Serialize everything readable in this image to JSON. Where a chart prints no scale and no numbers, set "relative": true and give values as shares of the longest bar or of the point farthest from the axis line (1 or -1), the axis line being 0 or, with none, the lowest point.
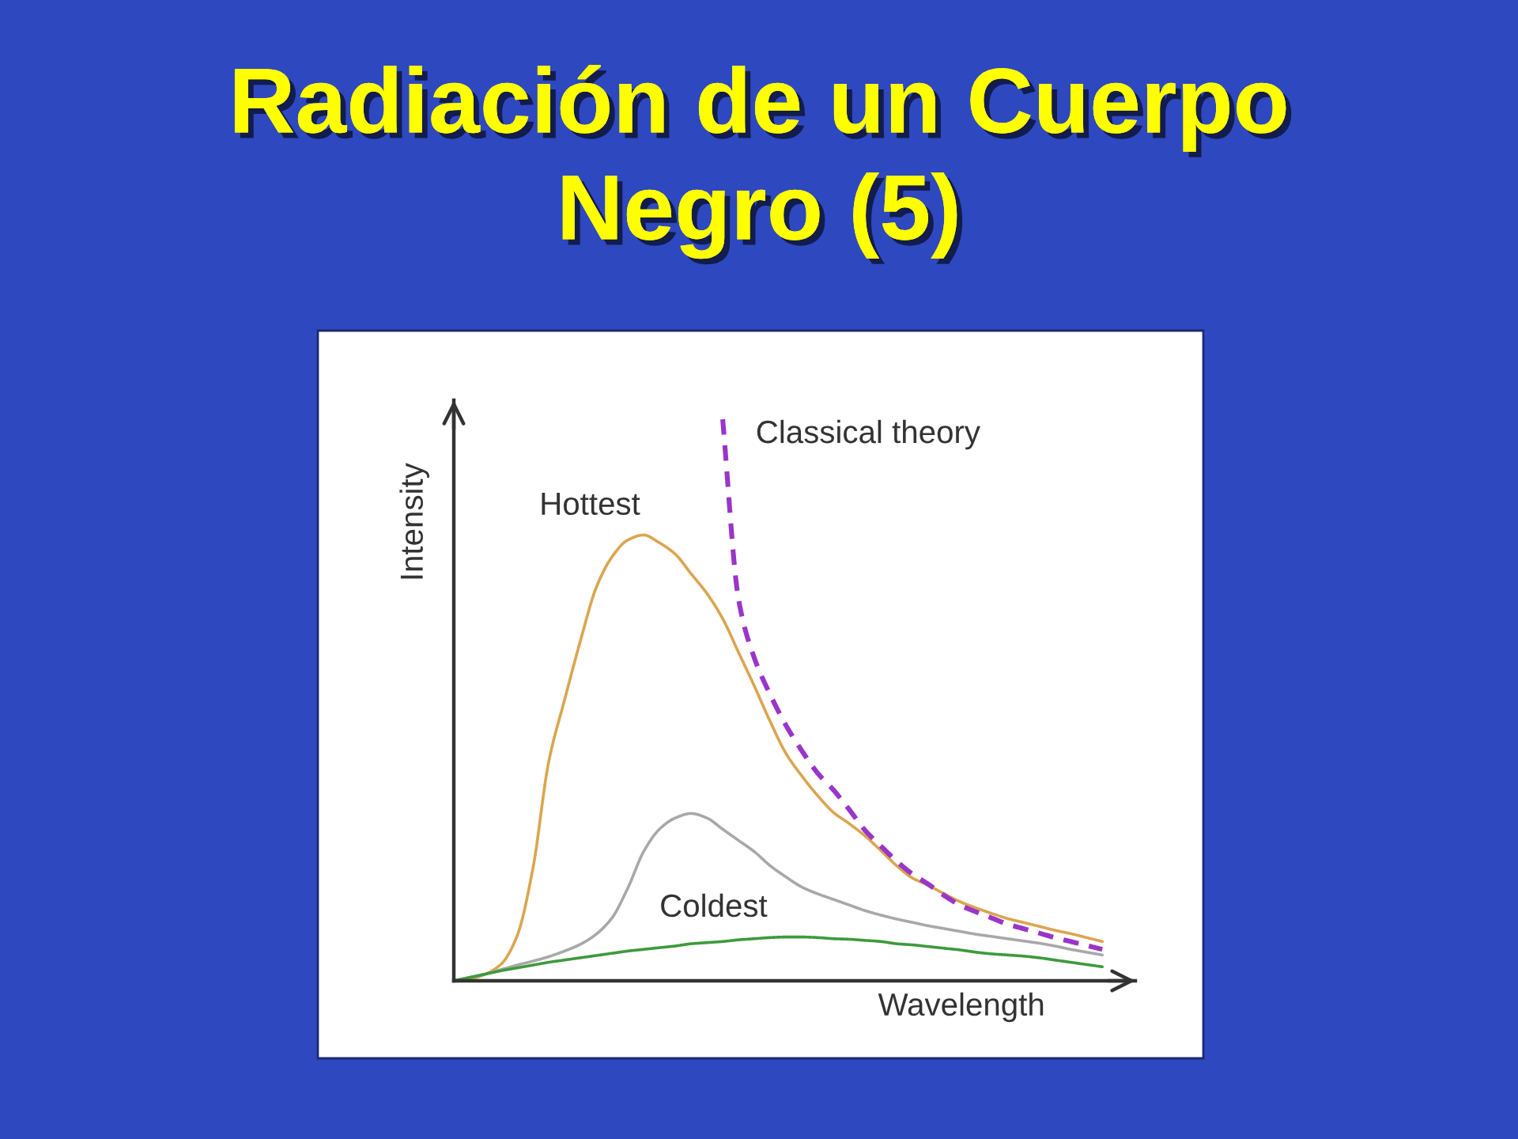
{
  "chart_data": {
    "type": "line",
    "relative": true,
    "title": "Radiación de un Cuerpo\nNegro (5)",
    "xlabel": "Wavelength",
    "ylabel": "Intensity",
    "categories": [
      null,
      null,
      null,
      null,
      null,
      null,
      null,
      null,
      null,
      null,
      null,
      null,
      null,
      null,
      null,
      null,
      null,
      null,
      null,
      null,
      null,
      null,
      null,
      null,
      null,
      null,
      null,
      null,
      null,
      null,
      null,
      null,
      null,
      null,
      null,
      null,
      null,
      null,
      null,
      null,
      null,
      null
    ],
    "series": [
      {
        "name": "Hottest",
        "color": "#dba54f",
        "values": [
          0,
          0.003,
          0.012,
          0.03,
          0.08,
          0.2,
          0.39,
          0.5,
          0.605,
          0.7,
          0.755,
          0.785,
          0.794,
          0.78,
          0.76,
          0.725,
          0.69,
          0.645,
          0.585,
          0.525,
          0.462,
          0.405,
          0.365,
          0.33,
          0.3,
          0.28,
          0.258,
          0.232,
          0.205,
          0.183,
          0.17,
          0.155,
          0.141,
          0.13,
          0.12,
          0.111,
          0.104,
          0.097,
          0.09,
          0.084,
          0.077,
          0.07
        ]
      },
      {
        "color": "#a8a8a8",
        "values": [
          0,
          0.006,
          0.012,
          0.02,
          0.028,
          0.035,
          0.043,
          0.053,
          0.065,
          0.083,
          0.112,
          0.165,
          0.23,
          0.27,
          0.29,
          0.298,
          0.29,
          0.27,
          0.25,
          0.23,
          0.205,
          0.185,
          0.167,
          0.155,
          0.145,
          0.135,
          0.125,
          0.117,
          0.11,
          0.104,
          0.098,
          0.093,
          0.088,
          0.083,
          0.079,
          0.075,
          0.071,
          0.067,
          0.062,
          0.056,
          0.051,
          0.046
        ]
      },
      {
        "name": "Coldest",
        "color": "#3d9a3d",
        "values": [
          0,
          0.006,
          0.012,
          0.018,
          0.023,
          0.028,
          0.033,
          0.037,
          0.041,
          0.045,
          0.049,
          0.053,
          0.056,
          0.059,
          0.062,
          0.066,
          0.068,
          0.07,
          0.073,
          0.075,
          0.077,
          0.078,
          0.078,
          0.077,
          0.075,
          0.074,
          0.072,
          0.07,
          0.066,
          0.064,
          0.061,
          0.058,
          0.055,
          0.051,
          0.048,
          0.046,
          0.044,
          0.041,
          0.037,
          0.033,
          0.029,
          0.025
        ]
      },
      {
        "name": "Classical theory",
        "color": "#9a35c9",
        "line_style": "dashed",
        "values": [
          null,
          null,
          null,
          null,
          null,
          null,
          null,
          null,
          null,
          null,
          null,
          null,
          null,
          null,
          null,
          null,
          null,
          1.0,
          0.68,
          0.575,
          0.51,
          0.455,
          0.41,
          0.37,
          0.34,
          0.305,
          0.268,
          0.24,
          0.213,
          0.19,
          0.172,
          0.152,
          0.135,
          0.123,
          0.112,
          0.101,
          0.093,
          0.085,
          0.077,
          0.07,
          0.063,
          0.056
        ]
      }
    ]
  }
}
